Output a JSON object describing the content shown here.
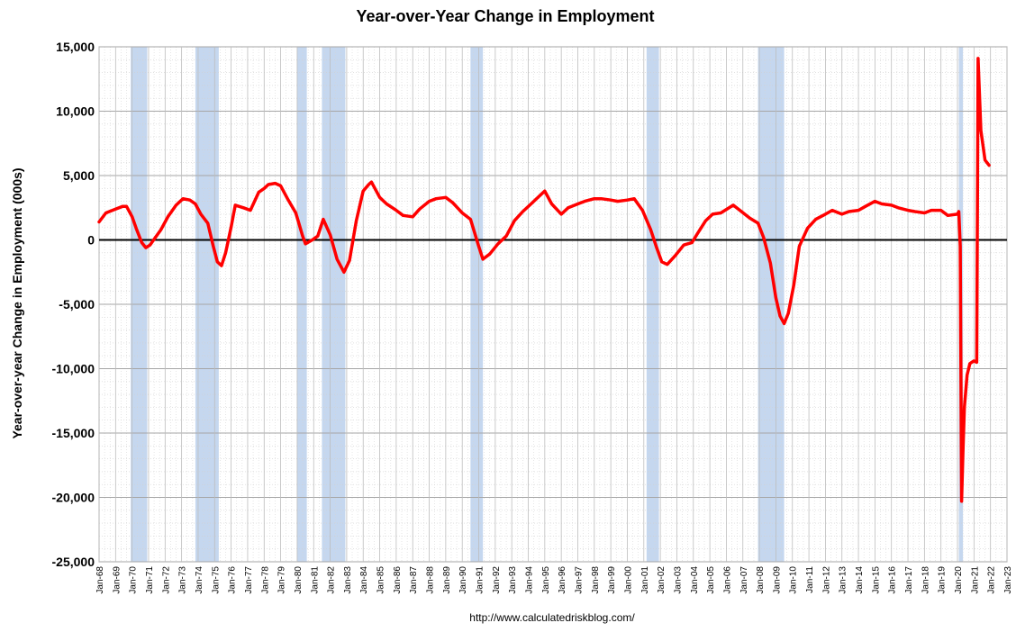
{
  "chart_data": {
    "type": "line",
    "title": "Year-over-Year Change in Employment",
    "xlabel": "",
    "ylabel": "Year-over-year Change in Employment (000s)",
    "source": "http://www.calculatedriskblog.com/",
    "ylim": [
      -25000,
      15000
    ],
    "xlim": [
      "1968-01",
      "2023-01"
    ],
    "yticks": [
      15000,
      10000,
      5000,
      0,
      -5000,
      -10000,
      -15000,
      -20000,
      -25000
    ],
    "ytick_labels": [
      "15,000",
      "10,000",
      "5,000",
      "0",
      "-5,000",
      "-10,000",
      "-15,000",
      "-20,000",
      "-25,000"
    ],
    "xtick_labels": [
      "Jan-68",
      "Jan-69",
      "Jan-70",
      "Jan-71",
      "Jan-72",
      "Jan-73",
      "Jan-74",
      "Jan-75",
      "Jan-76",
      "Jan-77",
      "Jan-78",
      "Jan-79",
      "Jan-80",
      "Jan-81",
      "Jan-82",
      "Jan-83",
      "Jan-84",
      "Jan-85",
      "Jan-86",
      "Jan-87",
      "Jan-88",
      "Jan-89",
      "Jan-90",
      "Jan-91",
      "Jan-92",
      "Jan-93",
      "Jan-94",
      "Jan-95",
      "Jan-96",
      "Jan-97",
      "Jan-98",
      "Jan-99",
      "Jan-00",
      "Jan-01",
      "Jan-02",
      "Jan-03",
      "Jan-04",
      "Jan-05",
      "Jan-06",
      "Jan-07",
      "Jan-08",
      "Jan-09",
      "Jan-10",
      "Jan-11",
      "Jan-12",
      "Jan-13",
      "Jan-14",
      "Jan-15",
      "Jan-16",
      "Jan-17",
      "Jan-18",
      "Jan-19",
      "Jan-20",
      "Jan-21",
      "Jan-22",
      "Jan-23"
    ],
    "grid": true,
    "recessions": [
      {
        "start": "1969-12",
        "end": "1970-11"
      },
      {
        "start": "1973-11",
        "end": "1975-03"
      },
      {
        "start": "1980-01",
        "end": "1980-07"
      },
      {
        "start": "1981-07",
        "end": "1982-11"
      },
      {
        "start": "1990-07",
        "end": "1991-03"
      },
      {
        "start": "2001-03",
        "end": "2001-11"
      },
      {
        "start": "2007-12",
        "end": "2009-06"
      },
      {
        "start": "2020-02",
        "end": "2020-04"
      }
    ],
    "series": [
      {
        "color": "#ff0000",
        "points": [
          [
            "1968-01",
            1400
          ],
          [
            "1968-06",
            2100
          ],
          [
            "1969-01",
            2400
          ],
          [
            "1969-06",
            2600
          ],
          [
            "1969-09",
            2600
          ],
          [
            "1970-01",
            1800
          ],
          [
            "1970-04",
            900
          ],
          [
            "1970-08",
            -200
          ],
          [
            "1970-11",
            -600
          ],
          [
            "1971-02",
            -400
          ],
          [
            "1971-06",
            200
          ],
          [
            "1971-10",
            800
          ],
          [
            "1972-03",
            1800
          ],
          [
            "1972-09",
            2700
          ],
          [
            "1973-02",
            3200
          ],
          [
            "1973-07",
            3100
          ],
          [
            "1973-11",
            2800
          ],
          [
            "1974-03",
            2000
          ],
          [
            "1974-08",
            1300
          ],
          [
            "1974-12",
            -500
          ],
          [
            "1975-03",
            -1700
          ],
          [
            "1975-06",
            -2000
          ],
          [
            "1975-09",
            -1000
          ],
          [
            "1976-01",
            1000
          ],
          [
            "1976-04",
            2700
          ],
          [
            "1976-10",
            2500
          ],
          [
            "1977-03",
            2300
          ],
          [
            "1977-09",
            3700
          ],
          [
            "1978-01",
            4000
          ],
          [
            "1978-04",
            4300
          ],
          [
            "1978-09",
            4400
          ],
          [
            "1979-01",
            4200
          ],
          [
            "1979-06",
            3200
          ],
          [
            "1979-12",
            2100
          ],
          [
            "1980-05",
            300
          ],
          [
            "1980-07",
            -300
          ],
          [
            "1980-12",
            0
          ],
          [
            "1981-04",
            300
          ],
          [
            "1981-08",
            1600
          ],
          [
            "1982-01",
            400
          ],
          [
            "1982-06",
            -1500
          ],
          [
            "1982-11",
            -2500
          ],
          [
            "1983-03",
            -1600
          ],
          [
            "1983-08",
            1500
          ],
          [
            "1984-01",
            3800
          ],
          [
            "1984-05",
            4300
          ],
          [
            "1984-07",
            4500
          ],
          [
            "1985-01",
            3300
          ],
          [
            "1985-06",
            2800
          ],
          [
            "1986-01",
            2300
          ],
          [
            "1986-06",
            1900
          ],
          [
            "1987-01",
            1800
          ],
          [
            "1987-06",
            2400
          ],
          [
            "1988-01",
            3000
          ],
          [
            "1988-06",
            3200
          ],
          [
            "1989-01",
            3300
          ],
          [
            "1989-06",
            2900
          ],
          [
            "1990-01",
            2100
          ],
          [
            "1990-07",
            1600
          ],
          [
            "1991-01",
            -500
          ],
          [
            "1991-04",
            -1500
          ],
          [
            "1991-09",
            -1100
          ],
          [
            "1992-03",
            -300
          ],
          [
            "1992-09",
            300
          ],
          [
            "1993-03",
            1500
          ],
          [
            "1993-09",
            2200
          ],
          [
            "1994-03",
            2800
          ],
          [
            "1994-09",
            3400
          ],
          [
            "1995-01",
            3800
          ],
          [
            "1995-06",
            2800
          ],
          [
            "1996-01",
            2000
          ],
          [
            "1996-06",
            2500
          ],
          [
            "1997-01",
            2800
          ],
          [
            "1997-06",
            3000
          ],
          [
            "1998-01",
            3200
          ],
          [
            "1998-06",
            3200
          ],
          [
            "1999-01",
            3100
          ],
          [
            "1999-06",
            3000
          ],
          [
            "2000-01",
            3100
          ],
          [
            "2000-06",
            3200
          ],
          [
            "2000-12",
            2300
          ],
          [
            "2001-06",
            800
          ],
          [
            "2001-10",
            -500
          ],
          [
            "2002-02",
            -1700
          ],
          [
            "2002-06",
            -1900
          ],
          [
            "2002-12",
            -1200
          ],
          [
            "2003-06",
            -400
          ],
          [
            "2003-12",
            -200
          ],
          [
            "2004-04",
            500
          ],
          [
            "2004-10",
            1500
          ],
          [
            "2005-03",
            2000
          ],
          [
            "2005-09",
            2100
          ],
          [
            "2006-03",
            2500
          ],
          [
            "2006-06",
            2700
          ],
          [
            "2006-12",
            2200
          ],
          [
            "2007-06",
            1700
          ],
          [
            "2007-12",
            1300
          ],
          [
            "2008-04",
            200
          ],
          [
            "2008-09",
            -1800
          ],
          [
            "2009-01",
            -4500
          ],
          [
            "2009-04",
            -5900
          ],
          [
            "2009-07",
            -6500
          ],
          [
            "2009-10",
            -5700
          ],
          [
            "2010-02",
            -3500
          ],
          [
            "2010-06",
            -500
          ],
          [
            "2010-12",
            900
          ],
          [
            "2011-06",
            1600
          ],
          [
            "2012-01",
            2000
          ],
          [
            "2012-06",
            2300
          ],
          [
            "2013-01",
            2000
          ],
          [
            "2013-06",
            2200
          ],
          [
            "2014-01",
            2300
          ],
          [
            "2014-06",
            2600
          ],
          [
            "2015-01",
            3000
          ],
          [
            "2015-06",
            2800
          ],
          [
            "2016-01",
            2700
          ],
          [
            "2016-06",
            2500
          ],
          [
            "2017-01",
            2300
          ],
          [
            "2017-06",
            2200
          ],
          [
            "2018-01",
            2100
          ],
          [
            "2018-06",
            2300
          ],
          [
            "2019-01",
            2300
          ],
          [
            "2019-06",
            1900
          ],
          [
            "2020-01",
            2000
          ],
          [
            "2020-02",
            2200
          ],
          [
            "2020-03",
            -500
          ],
          [
            "2020-04",
            -20300
          ],
          [
            "2020-05",
            -16500
          ],
          [
            "2020-06",
            -13000
          ],
          [
            "2020-08",
            -10500
          ],
          [
            "2020-10",
            -9600
          ],
          [
            "2021-01",
            -9400
          ],
          [
            "2021-03",
            -9500
          ],
          [
            "2021-04",
            14100
          ],
          [
            "2021-06",
            8500
          ],
          [
            "2021-09",
            6200
          ],
          [
            "2021-12",
            5800
          ]
        ]
      }
    ]
  }
}
